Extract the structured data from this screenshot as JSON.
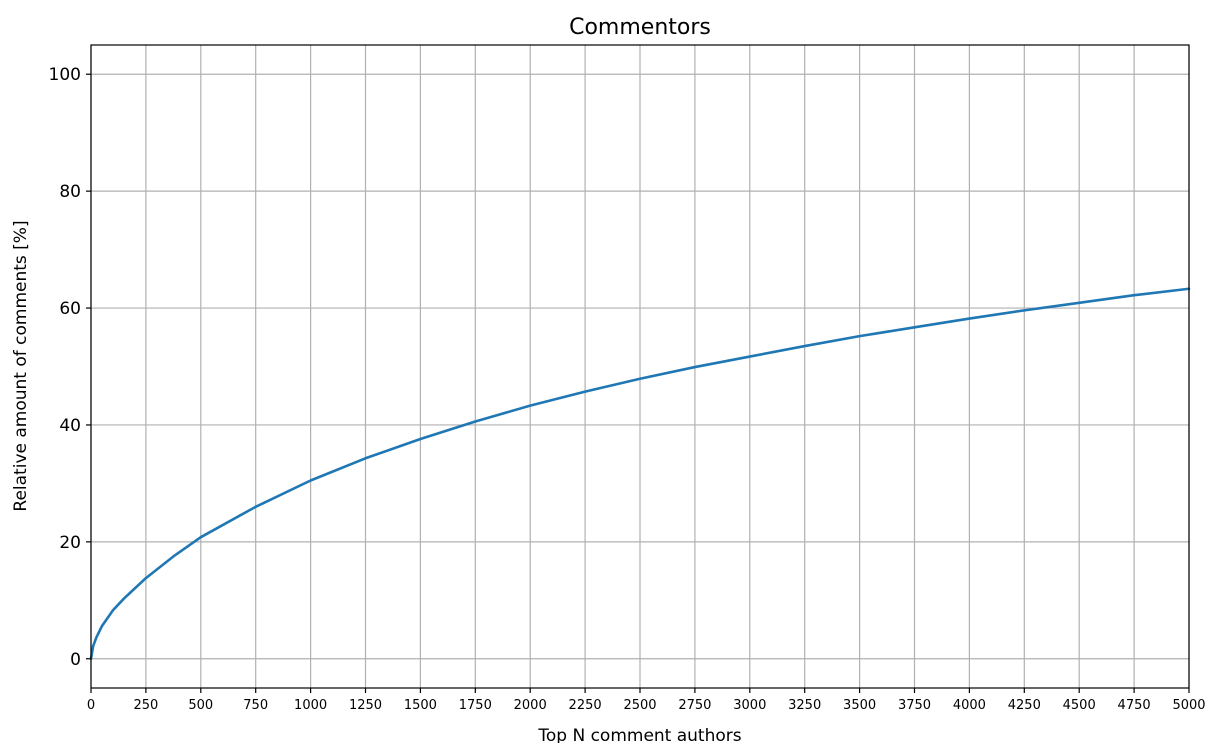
{
  "chart_data": {
    "type": "line",
    "title": "Commentors",
    "xlabel": "Top N comment authors",
    "ylabel": "Relative amount of comments [%]",
    "xlim": [
      0,
      5000
    ],
    "ylim": [
      -5,
      105
    ],
    "x_ticks": [
      0,
      250,
      500,
      750,
      1000,
      1250,
      1500,
      1750,
      2000,
      2250,
      2500,
      2750,
      3000,
      3250,
      3500,
      3750,
      4000,
      4250,
      4500,
      4750,
      5000
    ],
    "y_ticks": [
      0,
      20,
      40,
      60,
      80,
      100
    ],
    "grid": true,
    "series": [
      {
        "color": "#1f77b4",
        "x": [
          0,
          10,
          25,
          50,
          100,
          150,
          250,
          375,
          500,
          750,
          1000,
          1250,
          1500,
          1750,
          2000,
          2250,
          2500,
          2750,
          3000,
          3250,
          3500,
          3750,
          4000,
          4250,
          4500,
          4750,
          5000
        ],
        "y": [
          0,
          2.2,
          3.7,
          5.6,
          8.3,
          10.3,
          13.8,
          17.5,
          20.8,
          26.0,
          30.5,
          34.3,
          37.6,
          40.6,
          43.3,
          45.7,
          47.9,
          49.9,
          51.7,
          53.5,
          55.2,
          56.7,
          58.2,
          59.6,
          60.9,
          62.2,
          63.3
        ]
      }
    ]
  }
}
